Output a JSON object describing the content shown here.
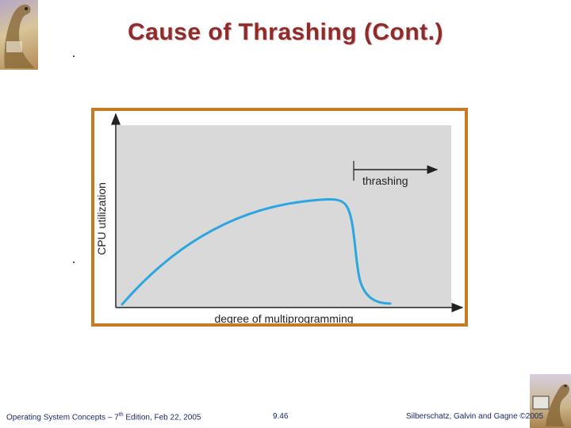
{
  "slide": {
    "title": "Cause of Thrashing (Cont.)"
  },
  "diagram": {
    "y_axis_label": "CPU utilization",
    "x_axis_label": "degree of multiprogramming",
    "annotation_label": "thrashing",
    "colors": {
      "frame": "#c87a22",
      "plot_background": "#d9d9d9",
      "curve": "#2ba6e0",
      "axis": "#222222"
    }
  },
  "footer": {
    "left_prefix": "Operating System Concepts – 7",
    "left_sup": "th",
    "left_suffix": " Edition, Feb 22, 2005",
    "center": "9.46",
    "right": "Silberschatz, Galvin and Gagne ©2005"
  },
  "icons": {
    "top_left": "dinosaur-logo-icon",
    "bottom_right": "dinosaur-logo-icon"
  }
}
